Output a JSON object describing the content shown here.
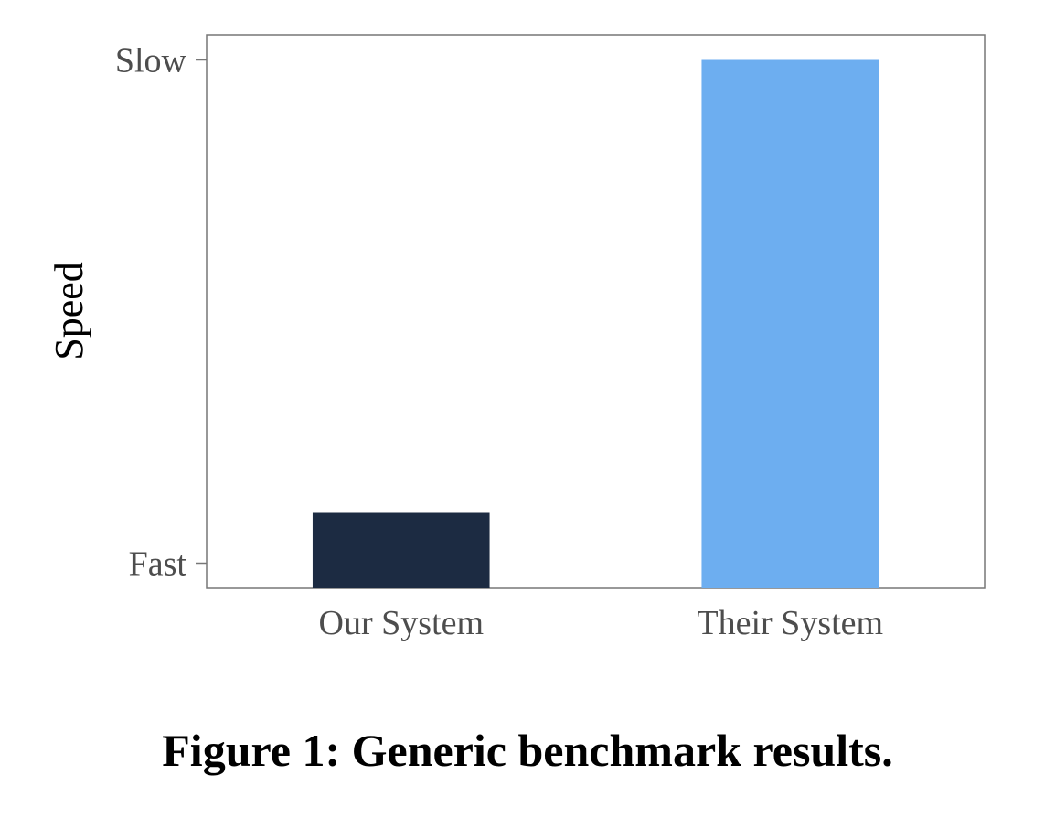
{
  "chart_data": {
    "type": "bar",
    "categories": [
      "Our System",
      "Their System"
    ],
    "values": [
      0.1,
      1.0
    ],
    "colors": [
      "#1c2b42",
      "#6daef0"
    ],
    "ylabel": "Speed",
    "xlabel": "",
    "y_ticks": [
      {
        "value": 0.0,
        "label": "Fast"
      },
      {
        "value": 1.0,
        "label": "Slow"
      }
    ],
    "ylim": [
      -0.05,
      1.05
    ],
    "grid": false,
    "legend": "none"
  },
  "caption": "Figure 1: Generic benchmark results."
}
